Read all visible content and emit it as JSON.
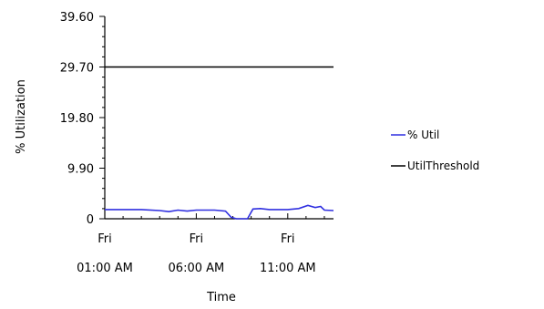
{
  "chart_data": {
    "type": "line",
    "title": "",
    "xlabel": "Time",
    "ylabel": "% Utilization",
    "ylim": [
      0,
      39.6
    ],
    "y_ticks": [
      "0",
      "9.90",
      "19.80",
      "29.70",
      "39.60"
    ],
    "x_ticks": [
      {
        "day": "Fri",
        "time": "01:00 AM",
        "hour": 1
      },
      {
        "day": "Fri",
        "time": "06:00 AM",
        "hour": 6
      },
      {
        "day": "Fri",
        "time": "11:00 AM",
        "hour": 11
      }
    ],
    "xlim_hours": [
      1,
      13.5
    ],
    "grid": false,
    "legend_position": "right",
    "series": [
      {
        "name": "% Util",
        "color": "#3030e0",
        "points": [
          [
            1.0,
            1.8
          ],
          [
            2.0,
            1.8
          ],
          [
            3.0,
            1.8
          ],
          [
            4.0,
            1.6
          ],
          [
            4.5,
            1.4
          ],
          [
            5.0,
            1.7
          ],
          [
            5.5,
            1.5
          ],
          [
            6.0,
            1.7
          ],
          [
            7.0,
            1.7
          ],
          [
            7.6,
            1.5
          ],
          [
            7.9,
            0.3
          ],
          [
            8.2,
            0.0
          ],
          [
            8.5,
            0.0
          ],
          [
            8.8,
            0.0
          ],
          [
            9.1,
            1.9
          ],
          [
            9.5,
            2.0
          ],
          [
            10.0,
            1.8
          ],
          [
            11.0,
            1.8
          ],
          [
            11.6,
            2.0
          ],
          [
            12.1,
            2.6
          ],
          [
            12.5,
            2.2
          ],
          [
            12.8,
            2.4
          ],
          [
            13.0,
            1.7
          ],
          [
            13.5,
            1.6
          ]
        ]
      },
      {
        "name": "UtilThreshold",
        "color": "#000000",
        "points": [
          [
            1.0,
            29.7
          ],
          [
            13.5,
            29.7
          ]
        ]
      }
    ]
  }
}
